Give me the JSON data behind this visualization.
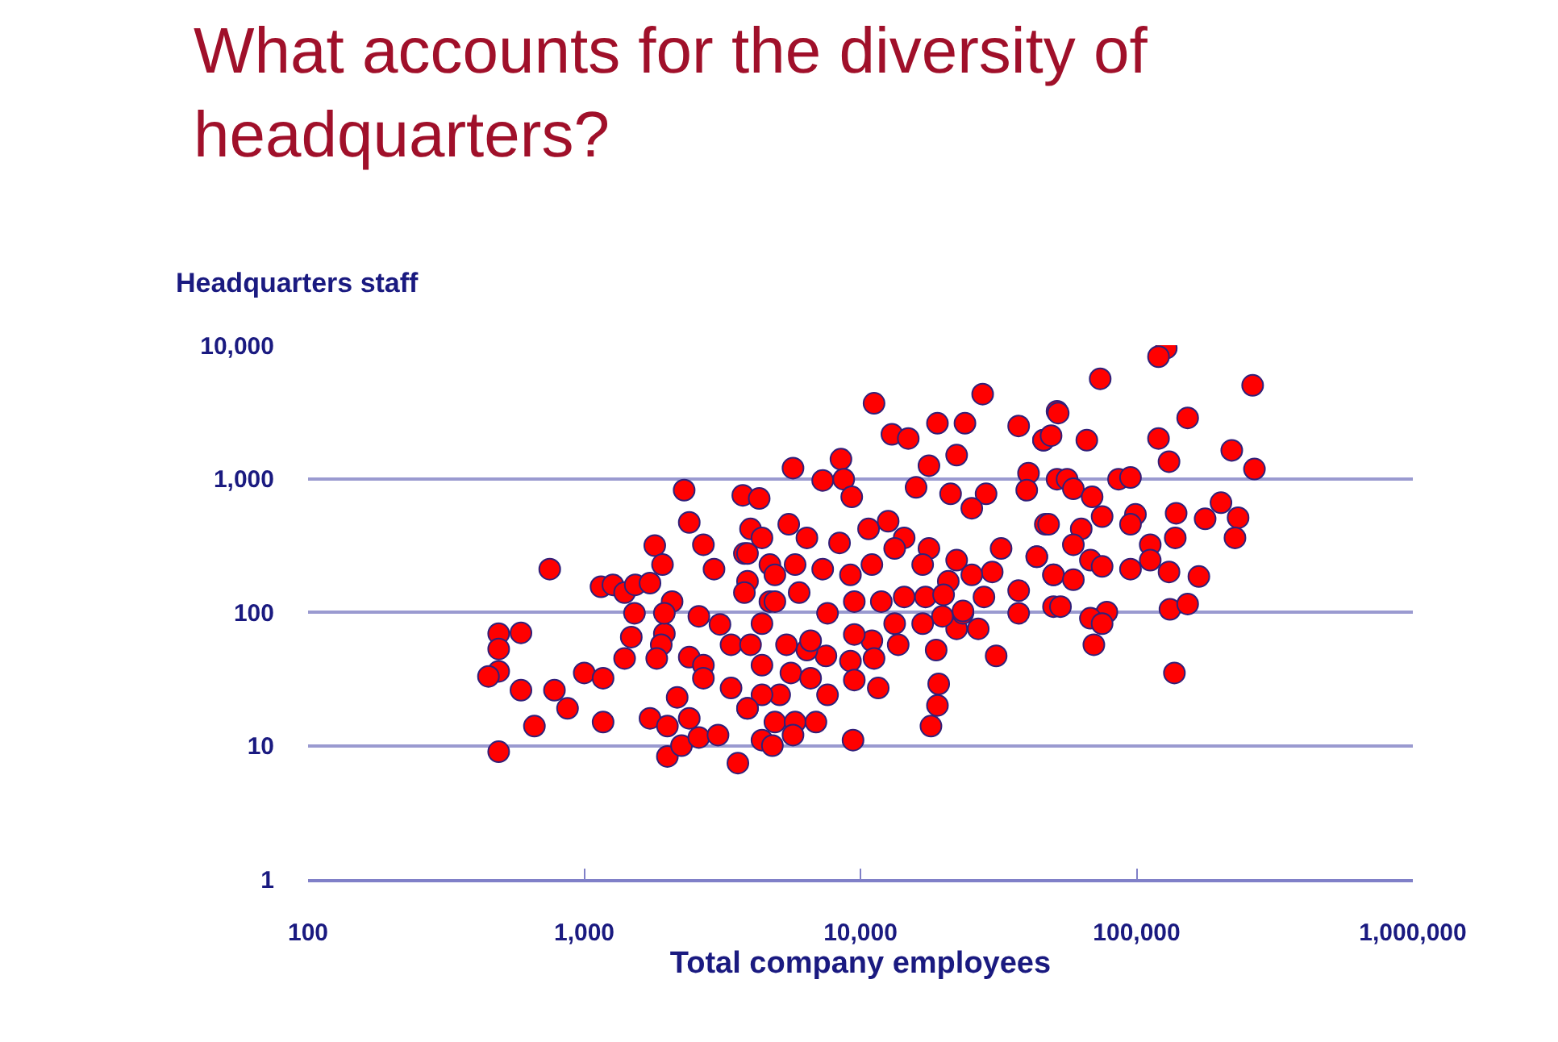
{
  "chart_data": {
    "type": "scatter",
    "title": "What accounts for the diversity of headquarters?",
    "xlabel": "Total company employees",
    "ylabel": "Headquarters staff",
    "log": "xy",
    "grid": "y",
    "marker": "circle",
    "xlim": [
      100,
      1000000
    ],
    "ylim": [
      1,
      10000
    ],
    "xticks": [
      100,
      {
        "value": 1000,
        "label": "1,000"
      },
      {
        "value": 10000,
        "label": "10,000"
      },
      {
        "value": 100000,
        "label": "100,000"
      },
      {
        "value": 1000000,
        "label": "1,000,000"
      }
    ],
    "yticks": [
      1,
      10,
      100,
      {
        "value": 1000,
        "label": "1,000"
      },
      {
        "value": 10000,
        "label": "10,000"
      }
    ],
    "series": [
      {
        "color": "#ff0000",
        "x": [
          490,
          590,
          490,
          490,
          450,
          590,
          780,
          870,
          660,
          1000,
          1170,
          1170,
          490,
          750,
          1150,
          1270,
          1400,
          1530,
          1730,
          1800,
          1920,
          2300,
          2400,
          1480,
          1400,
          1950,
          1900,
          1830,
          2080,
          1520,
          1950,
          1730,
          2000,
          2000,
          2170,
          2400,
          2250,
          2600,
          3050,
          2400,
          2700,
          2700,
          2950,
          3750,
          4300,
          4000,
          3600,
          2600,
          3100,
          2700,
          3400,
          3900,
          4400,
          3400,
          3800,
          4700,
          3900,
          4700,
          4400,
          11200,
          27700,
          13000,
          14900,
          19000,
          23900,
          22300,
          17700,
          5700,
          8500,
          7300,
          8700,
          9300,
          15900,
          21200,
          28500,
          25300,
          37400,
          46000,
          51500,
          40600,
          40000,
          46700,
          43500,
          50000,
          37400,
          50000,
          37400,
          31000,
          26700,
          22300,
          23500,
          19200,
          19000,
          18000,
          18800,
          19800,
          4400,
          5500,
          6400,
          8400,
          10700,
          12600,
          14400,
          17700,
          22300,
          32300,
          30000,
          25300,
          20800,
          16800,
          13300,
          11000,
          9200,
          7300,
          5800,
          4900,
          3900,
          3800,
          4900,
          6000,
          7600,
          9500,
          11900,
          14400,
          17200,
          20000,
          23500,
          28000,
          16800,
          13300,
          13700,
          11000,
          9500,
          9200,
          9500,
          11200,
          11600,
          7500,
          6400,
          5600,
          6600,
          7600,
          5100,
          4400,
          3900,
          4900,
          5800,
          6900,
          5700,
          4800,
          9400,
          6600,
          5400,
          4400,
          4000,
          73800,
          128000,
          120000,
          263000,
          153000,
          52000,
          46000,
          49000,
          66000,
          120000,
          131000,
          221000,
          267000,
          86000,
          95000,
          51500,
          56000,
          59000,
          69000,
          202000,
          139000,
          177000,
          233000,
          99000,
          75000,
          48000,
          63000,
          95000,
          138000,
          227000,
          59000,
          68000,
          112000,
          112000,
          43500,
          75000,
          95000,
          131000,
          168000,
          50000,
          59000,
          53000,
          78000,
          68000,
          75000,
          70000,
          132000,
          153000,
          137000
        ],
        "values": [
          69,
          70,
          53,
          36,
          33,
          26,
          26,
          19,
          14,
          35,
          32,
          15,
          9,
          210,
          155,
          160,
          140,
          160,
          165,
          315,
          227,
          820,
          470,
          65,
          45,
          69,
          57,
          45,
          120,
          98,
          98,
          16,
          14,
          8.3,
          23,
          16,
          10,
          11.5,
          12,
          46,
          40,
          320,
          210,
          750,
          710,
          420,
          7.4,
          93,
          81,
          32,
          27,
          19,
          11,
          57,
          275,
          227,
          170,
          120,
          40,
          3670,
          4300,
          2150,
          2000,
          2600,
          2600,
          1500,
          1250,
          1200,
          1400,
          970,
          990,
          730,
          860,
          770,
          770,
          600,
          2480,
          1940,
          3200,
          1100,
          820,
          455,
          260,
          190,
          145,
          110,
          98,
          47,
          75,
          75,
          98,
          29,
          20,
          14,
          52,
          93,
          360,
          455,
          360,
          330,
          420,
          480,
          360,
          300,
          245,
          300,
          200,
          190,
          170,
          227,
          300,
          227,
          190,
          210,
          227,
          190,
          275,
          140,
          120,
          140,
          98,
          120,
          120,
          130,
          130,
          135,
          102,
          130,
          82,
          82,
          57,
          61,
          68,
          43,
          31,
          45,
          27,
          47,
          52,
          35,
          32,
          24,
          24,
          24,
          19,
          15,
          15,
          15,
          12,
          10,
          11,
          61,
          57,
          82,
          57,
          5600,
          9500,
          8200,
          5000,
          2850,
          3100,
          1940,
          2100,
          1940,
          2000,
          1340,
          1630,
          1180,
          990,
          1020,
          990,
          990,
          840,
          730,
          660,
          550,
          500,
          510,
          540,
          520,
          455,
          420,
          455,
          360,
          360,
          320,
          245,
          320,
          245,
          260,
          220,
          210,
          200,
          185,
          190,
          175,
          110,
          100,
          90,
          82,
          57,
          105,
          115,
          35
        ]
      }
    ]
  }
}
